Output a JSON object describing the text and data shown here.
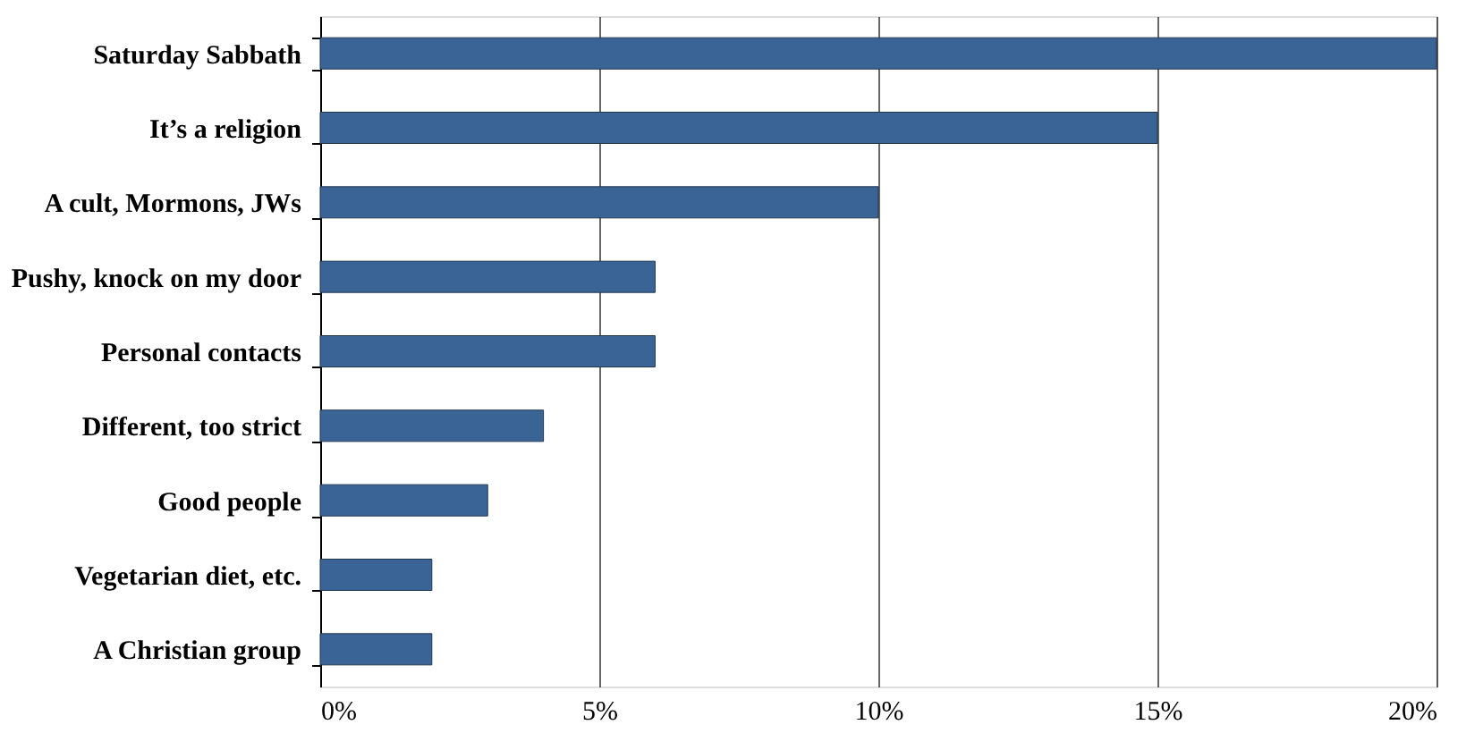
{
  "chart_data": {
    "type": "bar",
    "orientation": "horizontal",
    "categories": [
      "Saturday Sabbath",
      "It’s a religion",
      "A cult, Mormons, JWs",
      "Pushy, knock on my door",
      "Personal contacts",
      "Different, too strict",
      "Good people",
      "Vegetarian diet, etc.",
      "A Christian group"
    ],
    "values": [
      20,
      15,
      10,
      6,
      6,
      4,
      3,
      2,
      2
    ],
    "color": "#3a6496",
    "xlim": [
      0,
      20
    ],
    "xticks": [
      {
        "value": 0,
        "label": "0%"
      },
      {
        "value": 5,
        "label": "5%"
      },
      {
        "value": 10,
        "label": "10%"
      },
      {
        "value": 15,
        "label": "15%"
      },
      {
        "value": 20,
        "label": "20%"
      }
    ],
    "grid": "x"
  }
}
